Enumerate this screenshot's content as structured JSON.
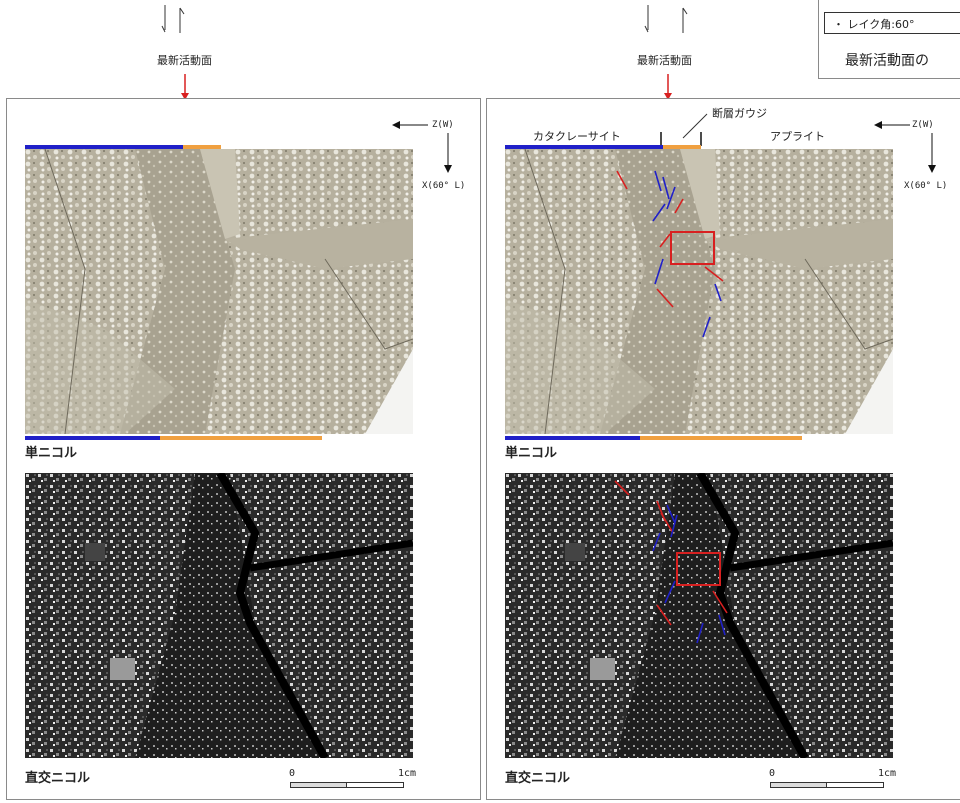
{
  "title_label": "最新活動面",
  "rake_note": "・ レイク角:60°",
  "right_caption": "最新活動面の",
  "left": {
    "z_label": "Z(W)",
    "x_label": "X(60° L)",
    "ppl_label": "単ニコル",
    "xpl_label": "直交ニコル",
    "scale_zero": "0",
    "scale_one": "1cm"
  },
  "right": {
    "cataclasite_label": "カタクレーサイト",
    "gouge_label": "断層ガウジ",
    "aplite_label": "アプライト",
    "z_label": "Z(W)",
    "x_label": "X(60° L)",
    "ppl_label": "単ニコル",
    "xpl_label": "直交ニコル",
    "scale_zero": "0",
    "scale_one": "1cm"
  },
  "colors": {
    "blue_bar": "#2020c8",
    "orange_bar": "#f0a040",
    "red_marker": "#d82020",
    "ppl_base": "#b8b2a0",
    "xpl_base": "#1a1a1a"
  }
}
